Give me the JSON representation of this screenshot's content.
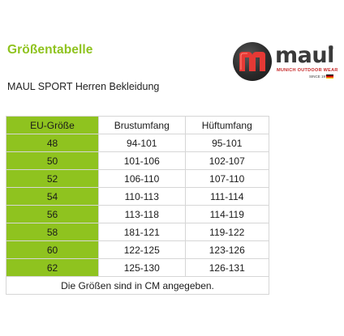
{
  "heading": "Größentabelle",
  "subheading": "MAUL SPORT Herren Bekleidung",
  "logo": {
    "word": "maul",
    "registered": "®",
    "tagline": "MUNICH OUTDOOR WEAR",
    "since": "SINCE 1975"
  },
  "colors": {
    "accent_green": "#8fc31f",
    "logo_red": "#c62828"
  },
  "table": {
    "headers": [
      "EU-Größe",
      "Brustumfang",
      "Hüftumfang"
    ],
    "rows": [
      [
        "48",
        "94-101",
        "95-101"
      ],
      [
        "50",
        "101-106",
        "102-107"
      ],
      [
        "52",
        "106-110",
        "107-110"
      ],
      [
        "54",
        "110-113",
        "111-114"
      ],
      [
        "56",
        "113-118",
        "114-119"
      ],
      [
        "58",
        "181-121",
        "119-122"
      ],
      [
        "60",
        "122-125",
        "123-126"
      ],
      [
        "62",
        "125-130",
        "126-131"
      ]
    ],
    "note": "Die Größen sind in CM angegeben."
  }
}
